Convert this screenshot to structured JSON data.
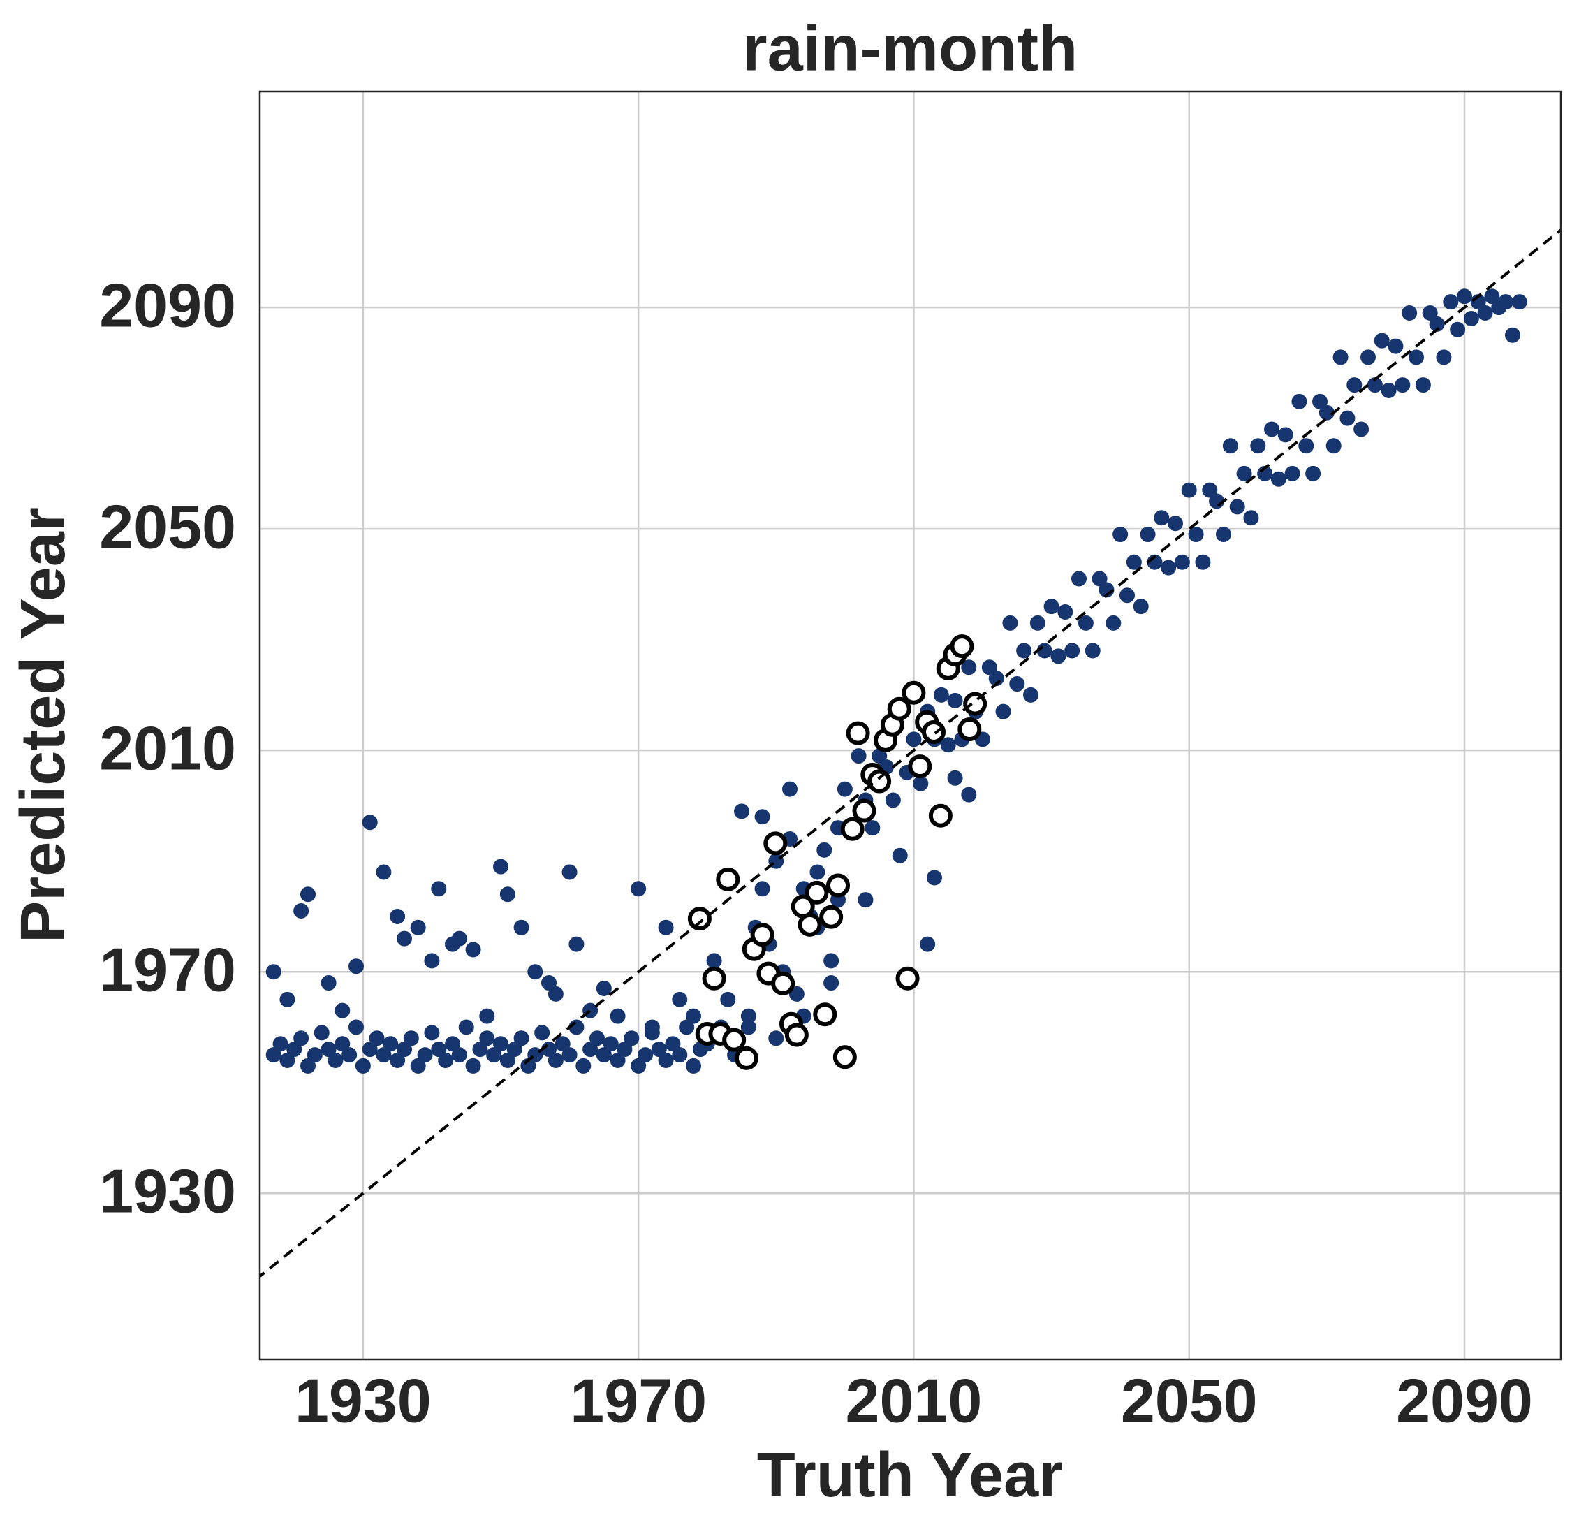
{
  "chart_data": {
    "type": "scatter",
    "title": "rain-month",
    "xlabel": "Truth Year",
    "ylabel": "Predicted Year",
    "xlim": [
      1915,
      2104
    ],
    "ylim": [
      1900,
      2129
    ],
    "xticks": [
      1930,
      1970,
      2010,
      2050,
      2090
    ],
    "yticks": [
      1930,
      1970,
      2010,
      2050,
      2090
    ],
    "grid": true,
    "identity_line": true,
    "series": [
      {
        "color": "#17366f",
        "edgecolor": "#17366f",
        "x": [
          1917,
          1918,
          1919,
          1920,
          1921,
          1922,
          1923,
          1924,
          1925,
          1926,
          1927,
          1928,
          1929,
          1930,
          1931,
          1932,
          1933,
          1934,
          1935,
          1936,
          1937,
          1938,
          1939,
          1940,
          1941,
          1942,
          1943,
          1944,
          1945,
          1946,
          1947,
          1948,
          1949,
          1950,
          1951,
          1952,
          1953,
          1954,
          1955,
          1956,
          1957,
          1958,
          1959,
          1960,
          1961,
          1962,
          1963,
          1964,
          1965,
          1966,
          1967,
          1968,
          1969,
          1970,
          1971,
          1972,
          1973,
          1974,
          1975,
          1976,
          1977,
          1978,
          1979,
          1917,
          1919,
          1921,
          1922,
          1925,
          1927,
          1929,
          1931,
          1933,
          1935,
          1936,
          1938,
          1940,
          1941,
          1943,
          1944,
          1946,
          1948,
          1950,
          1951,
          1953,
          1955,
          1957,
          1958,
          1960,
          1961,
          1963,
          1965,
          1967,
          1970,
          1972,
          1974,
          1976,
          1978,
          1980,
          1981,
          1982,
          1983,
          1984,
          1985,
          1986,
          1987,
          1988,
          1989,
          1990,
          1991,
          1992,
          1993,
          1994,
          1995,
          1996,
          1997,
          1998,
          1999,
          1988,
          1992,
          1986,
          1990,
          1994,
          1998,
          1996,
          1999,
          2000,
          2001,
          2002,
          2003,
          2004,
          2005,
          2006,
          2007,
          2008,
          2009,
          2010,
          2011,
          2012,
          2013,
          2014,
          2015,
          2016,
          2017,
          2018,
          2019,
          2020,
          2021,
          2022,
          2023,
          2024,
          2025,
          2026,
          2027,
          2028,
          2029,
          2030,
          2031,
          2032,
          2033,
          2034,
          2035,
          2036,
          2037,
          2038,
          2039,
          2040,
          2041,
          2042,
          2043,
          2044,
          2045,
          2046,
          2047,
          2048,
          2049,
          2050,
          2051,
          2052,
          2053,
          2054,
          2055,
          2056,
          2057,
          2058,
          2059,
          2060,
          2061,
          2062,
          2063,
          2064,
          2065,
          2066,
          2067,
          2068,
          2069,
          2070,
          2071,
          2072,
          2073,
          2074,
          2075,
          2076,
          2077,
          2078,
          2079,
          2080,
          2081,
          2082,
          2083,
          2084,
          2085,
          2086,
          2087,
          2088,
          2089,
          2090,
          2091,
          2092,
          2093,
          2094,
          2095,
          2096,
          2097,
          2098,
          2003,
          2012,
          2013,
          2008,
          2018,
          2016
        ],
        "values": [
          1955,
          1957,
          1954,
          1956,
          1958,
          1953,
          1955,
          1959,
          1956,
          1954,
          1957,
          1955,
          1960,
          1953,
          1956,
          1958,
          1955,
          1957,
          1954,
          1956,
          1958,
          1953,
          1955,
          1959,
          1956,
          1954,
          1957,
          1955,
          1960,
          1953,
          1956,
          1958,
          1955,
          1957,
          1954,
          1956,
          1958,
          1953,
          1955,
          1959,
          1956,
          1954,
          1957,
          1955,
          1960,
          1953,
          1956,
          1958,
          1955,
          1957,
          1954,
          1956,
          1958,
          1953,
          1955,
          1959,
          1956,
          1954,
          1957,
          1955,
          1960,
          1953,
          1956,
          1970,
          1965,
          1981,
          1984,
          1968,
          1963,
          1971,
          1997,
          1988,
          1980,
          1976,
          1978,
          1972,
          1985,
          1975,
          1976,
          1974,
          1962,
          1989,
          1984,
          1978,
          1970,
          1968,
          1966,
          1988,
          1975,
          1963,
          1967,
          1962,
          1985,
          1960,
          1978,
          1965,
          1962,
          1957,
          1972,
          1960,
          1965,
          1955,
          1999,
          1962,
          1978,
          1985,
          1975,
          1990,
          1970,
          1994,
          1966,
          1985,
          1980,
          1978,
          1992,
          1972,
          1996,
          1998,
          2003,
          1960,
          1958,
          1962,
          1968,
          1988,
          1983,
          2003,
          1996,
          2009,
          2001,
          1996,
          2009,
          2007,
          2001,
          2017,
          2006,
          2012,
          2004,
          2017,
          2012,
          2020,
          2011,
          2019,
          2012,
          2025,
          2017,
          2012,
          2025,
          2023,
          2017,
          2033,
          2022,
          2028,
          2020,
          2033,
          2028,
          2036,
          2027,
          2035,
          2028,
          2041,
          2033,
          2028,
          2041,
          2039,
          2033,
          2049,
          2038,
          2044,
          2036,
          2049,
          2044,
          2052,
          2043,
          2051,
          2044,
          2057,
          2049,
          2044,
          2057,
          2055,
          2049,
          2065,
          2054,
          2060,
          2052,
          2065,
          2060,
          2068,
          2059,
          2067,
          2060,
          2073,
          2065,
          2060,
          2073,
          2071,
          2065,
          2081,
          2070,
          2076,
          2068,
          2081,
          2076,
          2084,
          2075,
          2083,
          2076,
          2089,
          2081,
          2076,
          2089,
          2087,
          2081,
          2091,
          2086,
          2092,
          2088,
          2091,
          2089,
          2092,
          2090,
          2091,
          2085,
          2091,
          1983,
          1975,
          1987,
          1991,
          2002,
          2005
        ]
      },
      {
        "color": "#ffffff",
        "edgecolor": "#000000",
        "x": [
          1978.9,
          1981.0,
          1983.0,
          1980.0,
          1981.9,
          1983.9,
          1985.7,
          1986.8,
          1988.0,
          1988.9,
          1989.9,
          1991.0,
          1992.2,
          1993.0,
          1993.9,
          1994.9,
          1995.9,
          1997.1,
          1998.0,
          1999.0,
          2000.0,
          2001.1,
          2002.8,
          2001.9,
          2004.0,
          2005.0,
          2005.9,
          2006.9,
          2007.9,
          2009.1,
          2010.0,
          2010.9,
          2011.9,
          2012.9,
          2013.9,
          2015.0,
          2016.0,
          2017.0,
          2018.1,
          2018.9
        ],
        "values": [
          1979.6,
          1968.8,
          1986.7,
          1958.8,
          1958.8,
          1957.7,
          1954.4,
          1974.1,
          1976.7,
          1969.7,
          1993.2,
          1967.9,
          1960.6,
          1958.6,
          1981.8,
          1978.5,
          1984.3,
          1962.3,
          1979.9,
          1985.6,
          1954.6,
          1995.8,
          1999.1,
          2013.1,
          2005.6,
          2004.4,
          2011.8,
          2014.6,
          2017.5,
          1968.8,
          2020.4,
          2007.1,
          2015.1,
          2013.3,
          1998.2,
          2024.8,
          2027.3,
          2028.8,
          2013.8,
          2018.4
        ]
      }
    ]
  }
}
